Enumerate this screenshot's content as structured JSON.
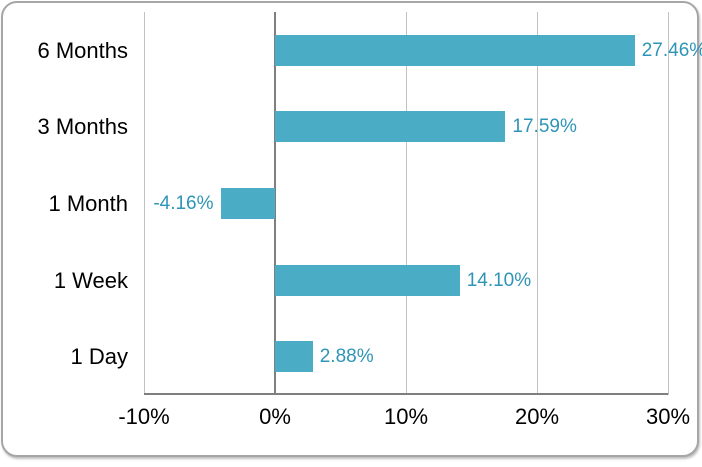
{
  "chart_data": {
    "type": "bar",
    "orientation": "horizontal",
    "title": "",
    "categories": [
      "6 Months",
      "3 Months",
      "1 Month",
      "1 Week",
      "1 Day"
    ],
    "values": [
      27.46,
      17.59,
      -4.16,
      14.1,
      2.88
    ],
    "value_labels": [
      "27.46%",
      "17.59%",
      "-4.16%",
      "14.10%",
      "2.88%"
    ],
    "x_tick_labels": [
      "-10%",
      "0%",
      "10%",
      "20%",
      "30%"
    ],
    "x_tick_values": [
      -10,
      0,
      10,
      20,
      30
    ],
    "xlim": [
      -10,
      30
    ],
    "grid": true,
    "legend": false,
    "colors": {
      "bar_fill": "#4BACC6",
      "value_label_text": "#2E95B6",
      "axis_text": "#000000",
      "gridline": "#C3C3C3",
      "zero_line": "#7F7F7F",
      "axis_line": "#7F7F7F",
      "frame_border": "#A6A6A6",
      "background": "#FFFFFF"
    }
  }
}
